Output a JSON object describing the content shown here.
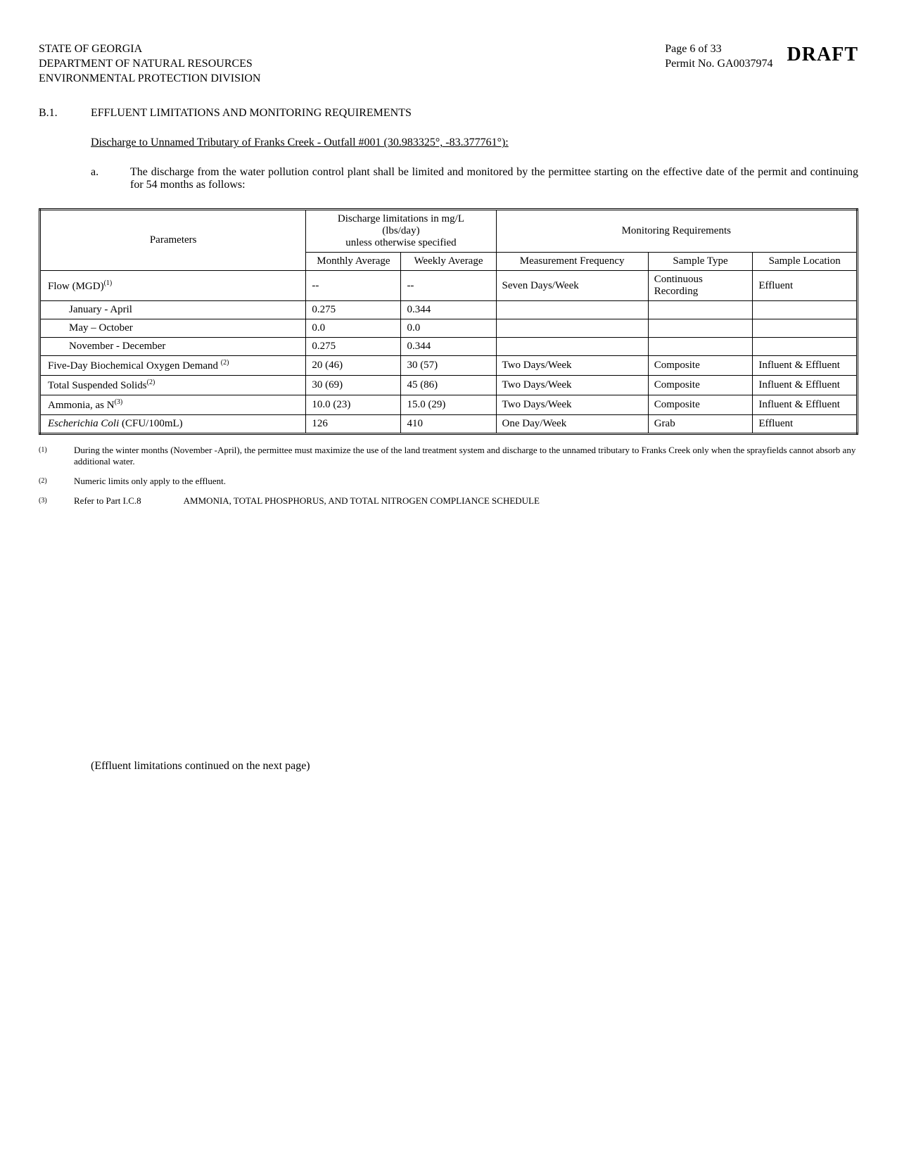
{
  "header": {
    "state": "STATE OF GEORGIA",
    "dept": "DEPARTMENT OF NATURAL RESOURCES",
    "division": "ENVIRONMENTAL PROTECTION DIVISION",
    "page": "Page 6 of 33",
    "permit": "Permit No. GA0037974",
    "draft": "DRAFT"
  },
  "section": {
    "num": "B.1.",
    "title": "EFFLUENT LIMITATIONS AND MONITORING REQUIREMENTS"
  },
  "discharge": "Discharge to Unnamed Tributary of Franks Creek - Outfall #001 (30.983325°, -83.377761°):",
  "para_a": {
    "letter": "a.",
    "text": "The discharge from the water pollution control plant shall be limited and monitored by the permittee starting on the effective date of the permit and continuing for 54 months as follows:"
  },
  "table": {
    "headers": {
      "parameters": "Parameters",
      "limits": "Discharge limitations in mg/L\n(lbs/day)\nunless otherwise specified",
      "monitoring": "Monitoring Requirements",
      "monthly": "Monthly Average",
      "weekly": "Weekly Average",
      "freq": "Measurement Frequency",
      "type": "Sample Type",
      "loc": "Sample Location"
    },
    "rows": [
      {
        "param": "Flow (MGD)",
        "sup": "(1)",
        "ma": "--",
        "wa": "--",
        "freq": "Seven Days/Week",
        "type": "Continuous Recording",
        "loc": "Effluent"
      },
      {
        "param": "January - April",
        "indent": true,
        "ma": "0.275",
        "wa": "0.344"
      },
      {
        "param": "May – October",
        "indent": true,
        "ma": "0.0",
        "wa": "0.0"
      },
      {
        "param": "November - December",
        "indent": true,
        "ma": "0.275",
        "wa": "0.344"
      },
      {
        "param": "Five-Day Biochemical Oxygen Demand",
        "sup": "(2)",
        "ma": "20 (46)",
        "wa": "30 (57)",
        "freq": "Two Days/Week",
        "type": "Composite",
        "loc": "Influent & Effluent"
      },
      {
        "param": "Total Suspended Solids",
        "sup": "(2)",
        "ma": "30 (69)",
        "wa": "45 (86)",
        "freq": "Two Days/Week",
        "type": "Composite",
        "loc": "Influent & Effluent"
      },
      {
        "param": "Ammonia, as N",
        "sup": "(3)",
        "ma": "10.0 (23)",
        "wa": "15.0 (29)",
        "freq": "Two Days/Week",
        "type": "Composite",
        "loc": "Influent & Effluent"
      },
      {
        "param": "Escherichia Coli",
        "suffix": " (CFU/100mL)",
        "italic_param": true,
        "ma": "126",
        "wa": "410",
        "freq": "One Day/Week",
        "type": "Grab",
        "loc": "Effluent"
      }
    ]
  },
  "footnotes": [
    {
      "num": "(1)",
      "text": "During the winter months (November -April), the permittee must maximize the use of the land treatment system and discharge to the unnamed tributary to Franks Creek only when the sprayfields cannot absorb any additional water."
    },
    {
      "num": "(2)",
      "text": "Numeric limits only apply to the effluent."
    },
    {
      "num": "(3)",
      "text": "Refer to Part I.C.8",
      "text2": "AMMONIA, TOTAL PHOSPHORUS, AND TOTAL NITROGEN COMPLIANCE SCHEDULE"
    }
  ],
  "continued": "(Effluent limitations continued on the next page)"
}
